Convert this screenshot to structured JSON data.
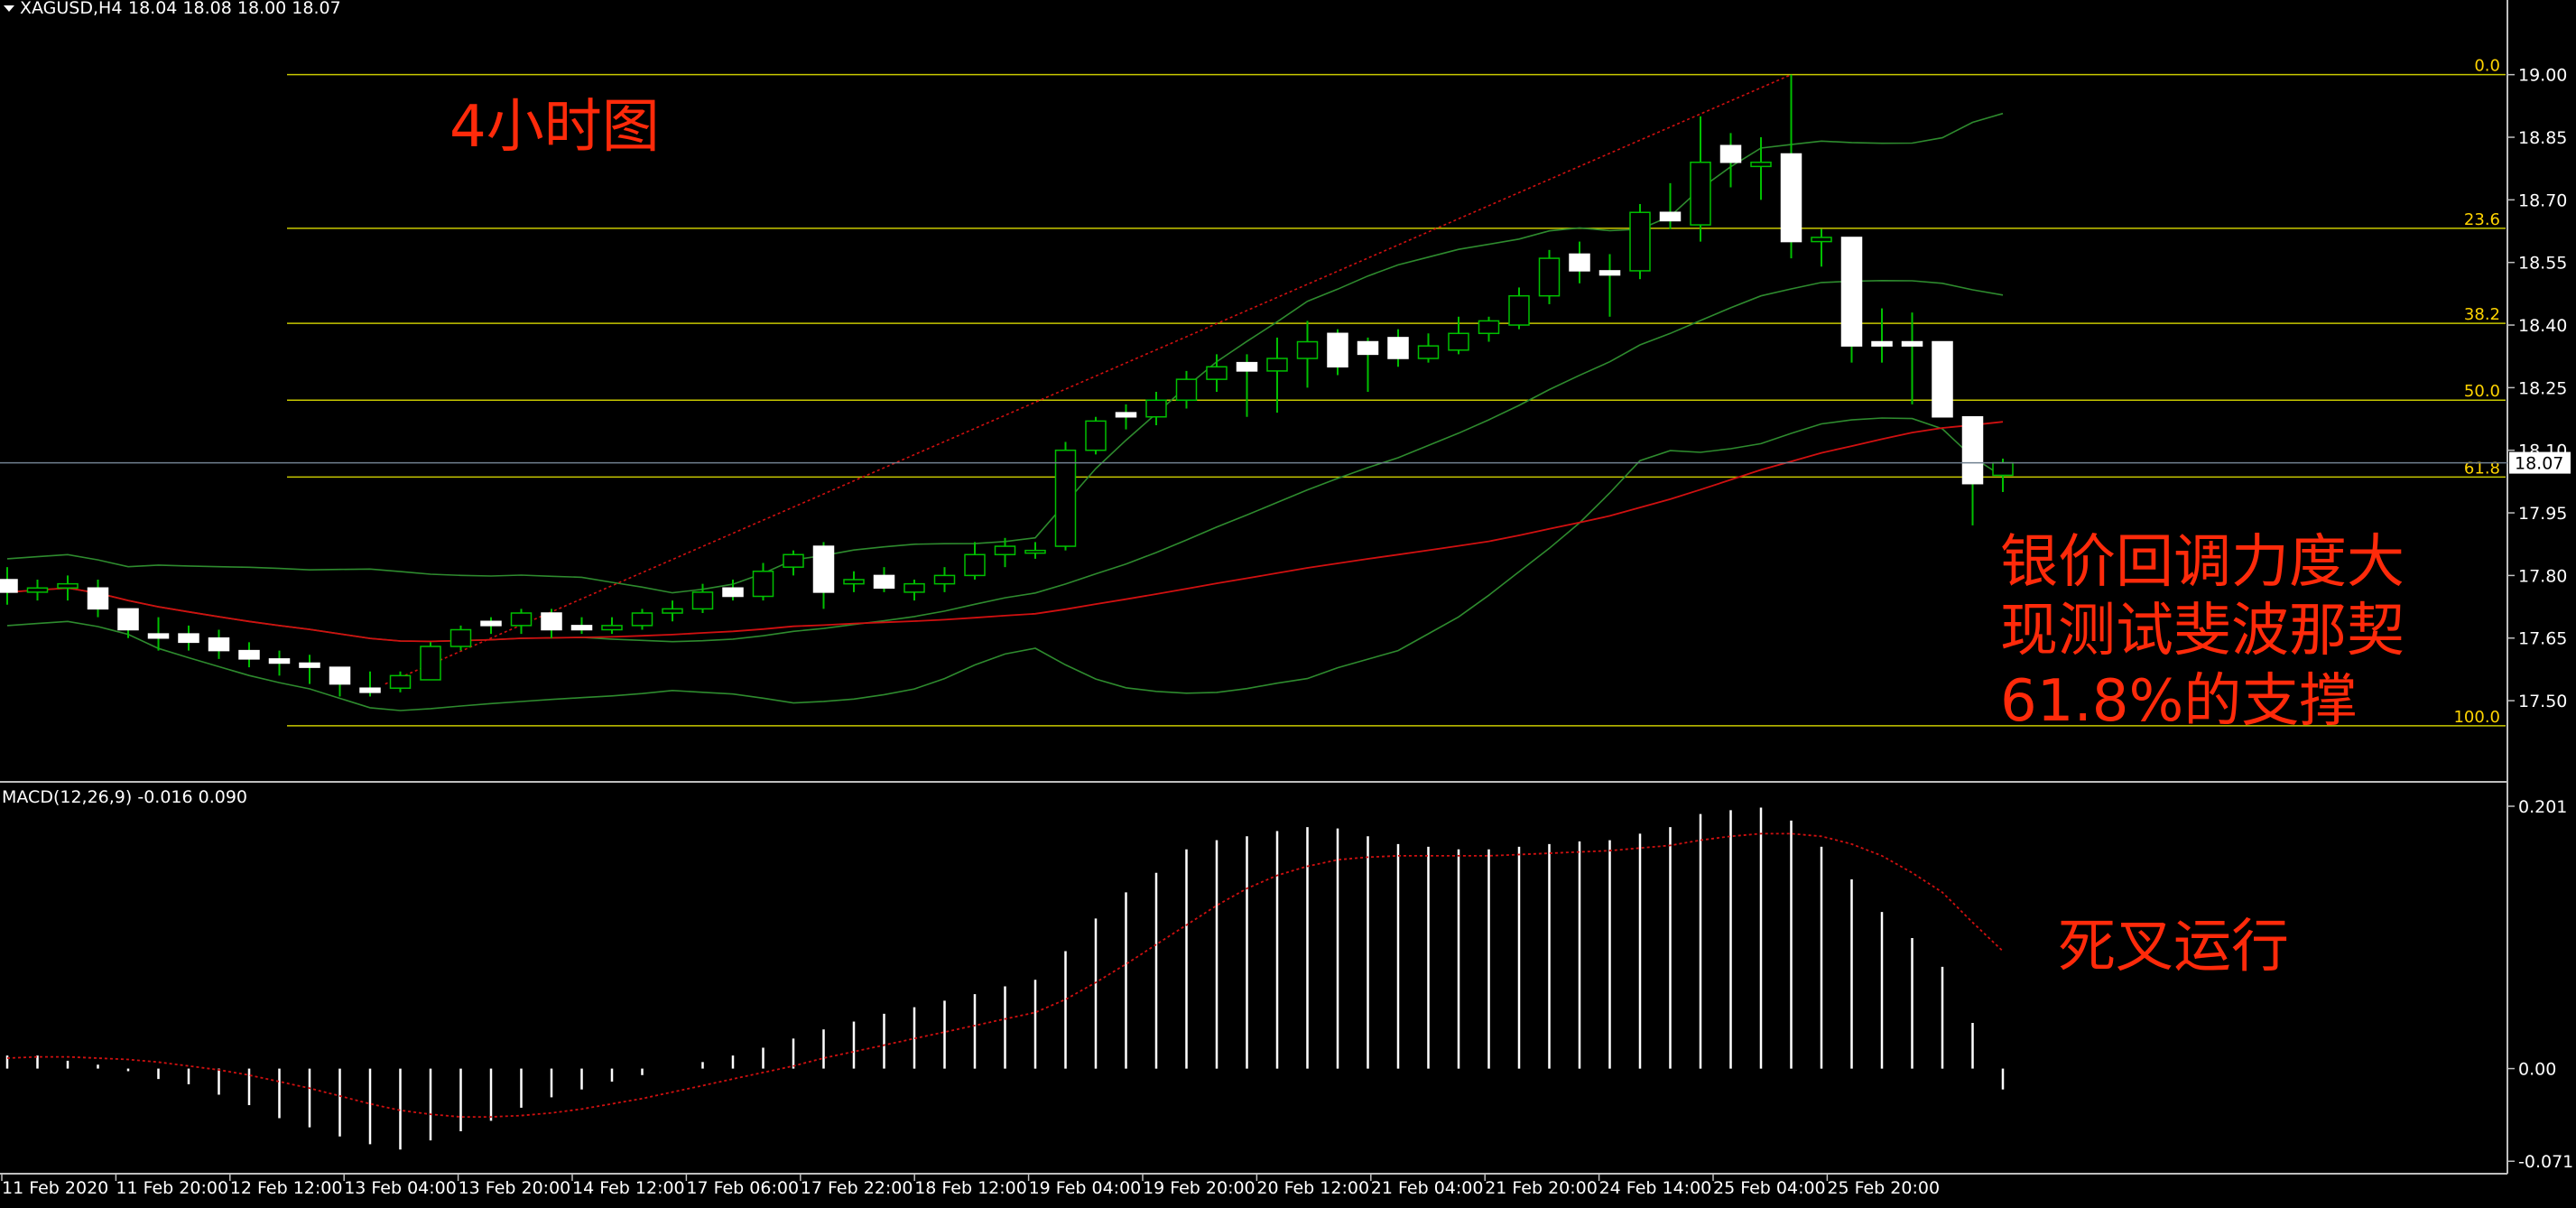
{
  "header": {
    "symbol": "XAGUSD,H4",
    "ohlc": "18.04 18.08 18.00 18.07"
  },
  "annotations": {
    "timeframe": "4小时图",
    "note_line1": "银价回调力度大",
    "note_line2": "现测试斐波那契",
    "note_line3": "61.8%的支撑",
    "macd_note": "死叉运行"
  },
  "colors": {
    "background": "#000000",
    "bull_candle": "#000000",
    "bear_candle": "#ffffff",
    "candle_wick": "#00c000",
    "bollinger": "#2e8b2e",
    "ma": "#d01010",
    "trendline": "#d01010",
    "fib": "#c8c800",
    "macd_hist": "#ffffff",
    "macd_signal": "#d01010",
    "annotation": "#ff2a0a"
  },
  "chart_data": {
    "type": "candlestick",
    "symbol": "XAGUSD",
    "timeframe": "H4",
    "current_price": "18.07",
    "price_axis": {
      "range": [
        17.405,
        19.075
      ],
      "ticks": [
        "19.00",
        "18.85",
        "18.70",
        "18.55",
        "18.40",
        "18.25",
        "18.10",
        "17.95",
        "17.80",
        "17.65",
        "17.50"
      ]
    },
    "time_labels": [
      "11 Feb 2020",
      "11 Feb 20:00",
      "12 Feb 12:00",
      "13 Feb 04:00",
      "13 Feb 20:00",
      "14 Feb 12:00",
      "17 Feb 06:00",
      "17 Feb 22:00",
      "18 Feb 12:00",
      "19 Feb 04:00",
      "19 Feb 20:00",
      "20 Feb 12:00",
      "21 Feb 04:00",
      "21 Feb 20:00",
      "24 Feb 14:00",
      "25 Feb 04:00",
      "25 Feb 20:00"
    ],
    "candles": [
      [
        17.79,
        17.82,
        17.73,
        17.76
      ],
      [
        17.76,
        17.79,
        17.74,
        17.77
      ],
      [
        17.77,
        17.8,
        17.74,
        17.78
      ],
      [
        17.77,
        17.79,
        17.7,
        17.72
      ],
      [
        17.72,
        17.72,
        17.65,
        17.67
      ],
      [
        17.66,
        17.7,
        17.62,
        17.65
      ],
      [
        17.66,
        17.68,
        17.62,
        17.64
      ],
      [
        17.65,
        17.67,
        17.6,
        17.62
      ],
      [
        17.62,
        17.64,
        17.58,
        17.6
      ],
      [
        17.6,
        17.62,
        17.56,
        17.59
      ],
      [
        17.59,
        17.61,
        17.54,
        17.58
      ],
      [
        17.58,
        17.58,
        17.51,
        17.54
      ],
      [
        17.53,
        17.57,
        17.51,
        17.52
      ],
      [
        17.53,
        17.57,
        17.52,
        17.56
      ],
      [
        17.55,
        17.64,
        17.55,
        17.63
      ],
      [
        17.63,
        17.68,
        17.62,
        17.67
      ],
      [
        17.69,
        17.7,
        17.66,
        17.68
      ],
      [
        17.68,
        17.72,
        17.66,
        17.71
      ],
      [
        17.71,
        17.72,
        17.65,
        17.67
      ],
      [
        17.68,
        17.7,
        17.66,
        17.67
      ],
      [
        17.67,
        17.7,
        17.66,
        17.68
      ],
      [
        17.68,
        17.72,
        17.67,
        17.71
      ],
      [
        17.71,
        17.74,
        17.69,
        17.72
      ],
      [
        17.72,
        17.78,
        17.71,
        17.76
      ],
      [
        17.77,
        17.79,
        17.74,
        17.75
      ],
      [
        17.75,
        17.83,
        17.74,
        17.81
      ],
      [
        17.82,
        17.86,
        17.8,
        17.85
      ],
      [
        17.87,
        17.88,
        17.72,
        17.76
      ],
      [
        17.78,
        17.81,
        17.76,
        17.79
      ],
      [
        17.8,
        17.82,
        17.76,
        17.77
      ],
      [
        17.76,
        17.79,
        17.74,
        17.78
      ],
      [
        17.78,
        17.82,
        17.76,
        17.8
      ],
      [
        17.8,
        17.88,
        17.79,
        17.85
      ],
      [
        17.85,
        17.89,
        17.82,
        17.87
      ],
      [
        17.86,
        17.88,
        17.84,
        17.86
      ],
      [
        17.87,
        18.12,
        17.86,
        18.1
      ],
      [
        18.1,
        18.18,
        18.09,
        18.17
      ],
      [
        18.19,
        18.21,
        18.15,
        18.18
      ],
      [
        18.18,
        18.24,
        18.16,
        18.22
      ],
      [
        18.22,
        18.29,
        18.2,
        18.27
      ],
      [
        18.27,
        18.33,
        18.24,
        18.3
      ],
      [
        18.31,
        18.33,
        18.18,
        18.29
      ],
      [
        18.29,
        18.37,
        18.19,
        18.32
      ],
      [
        18.32,
        18.41,
        18.25,
        18.36
      ],
      [
        18.38,
        18.39,
        18.28,
        18.3
      ],
      [
        18.36,
        18.37,
        18.24,
        18.33
      ],
      [
        18.37,
        18.39,
        18.3,
        18.32
      ],
      [
        18.32,
        18.38,
        18.31,
        18.35
      ],
      [
        18.34,
        18.42,
        18.33,
        18.38
      ],
      [
        18.38,
        18.42,
        18.36,
        18.41
      ],
      [
        18.4,
        18.49,
        18.39,
        18.47
      ],
      [
        18.47,
        18.58,
        18.45,
        18.56
      ],
      [
        18.57,
        18.6,
        18.5,
        18.53
      ],
      [
        18.53,
        18.57,
        18.42,
        18.52
      ],
      [
        18.53,
        18.69,
        18.51,
        18.67
      ],
      [
        18.67,
        18.74,
        18.63,
        18.65
      ],
      [
        18.64,
        18.9,
        18.6,
        18.79
      ],
      [
        18.83,
        18.86,
        18.73,
        18.79
      ],
      [
        18.78,
        18.85,
        18.7,
        18.79
      ],
      [
        18.81,
        19.0,
        18.56,
        18.6
      ],
      [
        18.6,
        18.63,
        18.54,
        18.61
      ],
      [
        18.61,
        18.61,
        18.31,
        18.35
      ],
      [
        18.36,
        18.44,
        18.31,
        18.35
      ],
      [
        18.36,
        18.43,
        18.21,
        18.35
      ],
      [
        18.36,
        18.36,
        18.19,
        18.18
      ],
      [
        18.18,
        18.18,
        17.92,
        18.02
      ],
      [
        18.04,
        18.08,
        18.0,
        18.07
      ]
    ],
    "fibonacci": {
      "high": 19.0,
      "low": 17.44,
      "levels": [
        {
          "label": "0.0",
          "ratio": 0.0
        },
        {
          "label": "23.6",
          "ratio": 0.236
        },
        {
          "label": "38.2",
          "ratio": 0.382
        },
        {
          "label": "50.0",
          "ratio": 0.5
        },
        {
          "label": "61.8",
          "ratio": 0.618
        },
        {
          "label": "100.0",
          "ratio": 1.0
        }
      ]
    },
    "trendline": {
      "from": [
        12.5,
        17.54
      ],
      "to": [
        59,
        19.0
      ]
    },
    "indicators": {
      "bollinger_period": 20,
      "bollinger_dev": 2,
      "ma_period": 50
    },
    "macd": {
      "label": "MACD(12,26,9) -0.016 0.090",
      "params": [
        12,
        26,
        9
      ],
      "range": [
        -0.075,
        0.21
      ],
      "ticks": [
        "0.201",
        "0.00",
        "-0.071"
      ],
      "histogram": [
        0.01,
        0.01,
        0.006,
        0.003,
        -0.002,
        -0.008,
        -0.012,
        -0.02,
        -0.028,
        -0.038,
        -0.045,
        -0.052,
        -0.058,
        -0.062,
        -0.055,
        -0.048,
        -0.04,
        -0.03,
        -0.022,
        -0.016,
        -0.01,
        -0.005,
        0.0,
        0.005,
        0.01,
        0.016,
        0.023,
        0.03,
        0.036,
        0.042,
        0.047,
        0.052,
        0.057,
        0.063,
        0.068,
        0.09,
        0.115,
        0.135,
        0.15,
        0.168,
        0.175,
        0.178,
        0.182,
        0.185,
        0.184,
        0.178,
        0.172,
        0.17,
        0.168,
        0.168,
        0.17,
        0.172,
        0.174,
        0.175,
        0.18,
        0.185,
        0.195,
        0.198,
        0.2,
        0.19,
        0.17,
        0.145,
        0.12,
        0.1,
        0.078,
        0.035,
        -0.016
      ],
      "signal": [
        0.008,
        0.009,
        0.009,
        0.008,
        0.007,
        0.005,
        0.002,
        -0.001,
        -0.005,
        -0.01,
        -0.015,
        -0.021,
        -0.027,
        -0.032,
        -0.035,
        -0.037,
        -0.037,
        -0.036,
        -0.034,
        -0.031,
        -0.027,
        -0.023,
        -0.018,
        -0.013,
        -0.008,
        -0.003,
        0.002,
        0.008,
        0.013,
        0.018,
        0.023,
        0.028,
        0.033,
        0.038,
        0.043,
        0.053,
        0.066,
        0.08,
        0.095,
        0.11,
        0.125,
        0.138,
        0.148,
        0.155,
        0.16,
        0.162,
        0.163,
        0.163,
        0.163,
        0.163,
        0.164,
        0.165,
        0.166,
        0.167,
        0.169,
        0.171,
        0.175,
        0.178,
        0.18,
        0.18,
        0.178,
        0.172,
        0.163,
        0.15,
        0.135,
        0.112,
        0.09
      ]
    }
  }
}
